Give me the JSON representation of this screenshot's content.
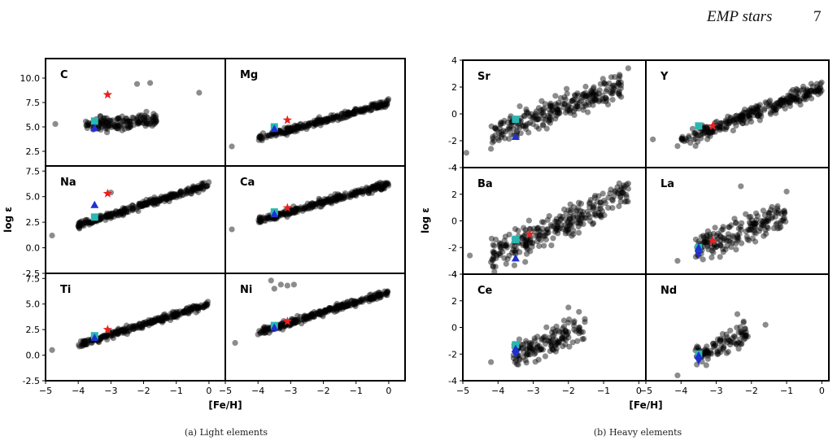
{
  "header": {
    "running_title": "EMP stars",
    "page_number": "7"
  },
  "captions": {
    "left": "(a)  Light elements",
    "right": "(b)  Heavy elements"
  },
  "colors": {
    "points": "#000000",
    "star": "#e8221f",
    "square": "#2ab7b2",
    "triangle": "#1f2fd1"
  },
  "chart_data": [
    {
      "type": "scatter",
      "figure": "left",
      "xlabel": "[Fe/H]",
      "ylabel": "log ε",
      "xlim": [
        -5,
        0.5
      ],
      "xticks": [
        -5,
        -4,
        -3,
        -2,
        -1,
        0
      ],
      "grid": false,
      "rows": [
        {
          "ylim": [
            1,
            12
          ],
          "yticks": [
            2.5,
            5.0,
            7.5,
            10.0
          ]
        },
        {
          "ylim": [
            -2.5,
            8
          ],
          "yticks": [
            -2.5,
            0.0,
            2.5,
            5.0,
            7.5
          ]
        },
        {
          "ylim": [
            -2.5,
            8
          ],
          "yticks": [
            -2.5,
            0.0,
            2.5,
            5.0,
            7.5
          ]
        }
      ],
      "panels": [
        {
          "label": "C",
          "row": 0,
          "col": 0,
          "trend": {
            "slope": 0.3,
            "intercept": 6.2,
            "spread": 0.6,
            "xmin": -3.8,
            "xmax": -1.6
          },
          "extra": [
            [
              -4.7,
              5.3
            ],
            [
              -0.3,
              8.5
            ],
            [
              -1.8,
              9.5
            ],
            [
              -2.2,
              9.4
            ]
          ],
          "markers": {
            "star": [
              -3.1,
              8.3
            ],
            "square": [
              -3.5,
              5.6
            ],
            "triangle": [
              -3.5,
              4.9
            ]
          }
        },
        {
          "label": "Mg",
          "row": 0,
          "col": 1,
          "trend": {
            "slope": 0.92,
            "intercept": 7.5,
            "spread": 0.25,
            "xmin": -4.0,
            "xmax": 0.0
          },
          "extra": [
            [
              -4.8,
              3.0
            ]
          ],
          "markers": {
            "star": [
              -3.1,
              5.7
            ],
            "square": [
              -3.5,
              5.0
            ],
            "triangle": [
              -3.5,
              4.8
            ]
          }
        },
        {
          "label": "Na",
          "row": 1,
          "col": 0,
          "trend": {
            "slope": 1.0,
            "intercept": 6.2,
            "spread": 0.25,
            "xmin": -4.0,
            "xmax": 0.0
          },
          "extra": [
            [
              -4.8,
              1.2
            ],
            [
              -3.0,
              5.4
            ]
          ],
          "markers": {
            "star": [
              -3.1,
              5.3
            ],
            "square": [
              -3.5,
              3.0
            ],
            "triangle": [
              -3.5,
              4.2
            ]
          }
        },
        {
          "label": "Ca",
          "row": 1,
          "col": 1,
          "trend": {
            "slope": 0.88,
            "intercept": 6.2,
            "spread": 0.25,
            "xmin": -4.0,
            "xmax": 0.0
          },
          "extra": [
            [
              -4.8,
              1.8
            ]
          ],
          "markers": {
            "star": [
              -3.1,
              3.9
            ],
            "square": [
              -3.5,
              3.5
            ],
            "triangle": [
              -3.5,
              3.3
            ]
          }
        },
        {
          "label": "Ti",
          "row": 2,
          "col": 0,
          "trend": {
            "slope": 1.0,
            "intercept": 5.0,
            "spread": 0.22,
            "xmin": -4.0,
            "xmax": 0.0
          },
          "extra": [
            [
              -4.8,
              0.5
            ]
          ],
          "markers": {
            "star": [
              -3.1,
              2.5
            ],
            "square": [
              -3.5,
              1.9
            ],
            "triangle": [
              -3.5,
              1.7
            ]
          }
        },
        {
          "label": "Ni",
          "row": 2,
          "col": 1,
          "trend": {
            "slope": 1.0,
            "intercept": 6.2,
            "spread": 0.22,
            "xmin": -4.0,
            "xmax": 0.0
          },
          "extra": [
            [
              -4.7,
              1.2
            ],
            [
              -3.6,
              7.3
            ],
            [
              -3.3,
              6.9
            ],
            [
              -3.1,
              6.8
            ],
            [
              -2.9,
              6.9
            ],
            [
              -3.5,
              6.5
            ]
          ],
          "markers": {
            "star": [
              -3.1,
              3.3
            ],
            "square": [
              -3.5,
              2.9
            ],
            "triangle": [
              -3.5,
              2.7
            ]
          }
        }
      ]
    },
    {
      "type": "scatter",
      "figure": "right",
      "xlabel": "[Fe/H]",
      "ylabel": "log ε",
      "xlim": [
        -5,
        0.2
      ],
      "xticks": [
        -5,
        -4,
        -3,
        -2,
        -1,
        0
      ],
      "grid": false,
      "rows": [
        {
          "ylim": [
            -4,
            4
          ],
          "yticks": [
            -4,
            -2,
            0,
            2,
            4
          ]
        },
        {
          "ylim": [
            -4,
            4
          ],
          "yticks": [
            -4,
            -2,
            0,
            2,
            4
          ]
        },
        {
          "ylim": [
            -4,
            4
          ],
          "yticks": [
            -4,
            -2,
            0,
            2,
            4
          ]
        }
      ],
      "panels": [
        {
          "label": "Sr",
          "row": 0,
          "col": 0,
          "trend": {
            "slope": 1.0,
            "intercept": 2.6,
            "spread": 0.7,
            "xmin": -4.2,
            "xmax": -0.5
          },
          "extra": [
            [
              -4.9,
              -2.9
            ],
            [
              -4.2,
              -2.6
            ],
            [
              -0.3,
              3.4
            ]
          ],
          "markers": {
            "star": null,
            "square": [
              -3.5,
              -0.4
            ],
            "triangle": [
              -3.5,
              -1.7
            ]
          }
        },
        {
          "label": "Y",
          "row": 0,
          "col": 1,
          "trend": {
            "slope": 1.0,
            "intercept": 2.0,
            "spread": 0.4,
            "xmin": -4.0,
            "xmax": 0.0
          },
          "extra": [
            [
              -4.8,
              -1.9
            ],
            [
              -4.1,
              -2.4
            ]
          ],
          "markers": {
            "star": [
              -3.1,
              -0.9
            ],
            "square": [
              -3.5,
              -0.9
            ],
            "triangle": null
          }
        },
        {
          "label": "Ba",
          "row": 1,
          "col": 0,
          "trend": {
            "slope": 1.2,
            "intercept": 2.4,
            "spread": 0.8,
            "xmin": -4.2,
            "xmax": -0.3
          },
          "extra": [
            [
              -4.8,
              -2.6
            ],
            [
              -4.2,
              -3.1
            ],
            [
              -0.3,
              2.8
            ]
          ],
          "markers": {
            "star": [
              -3.1,
              -1.0
            ],
            "square": [
              -3.5,
              -1.4
            ],
            "triangle": [
              -3.5,
              -2.8
            ]
          }
        },
        {
          "label": "La",
          "row": 1,
          "col": 1,
          "trend": {
            "slope": 1.0,
            "intercept": 1.5,
            "spread": 0.7,
            "xmin": -3.6,
            "xmax": -1.0
          },
          "extra": [
            [
              -4.1,
              -3.0
            ],
            [
              -2.3,
              2.6
            ],
            [
              -1.0,
              2.2
            ]
          ],
          "markers": {
            "star": [
              -3.1,
              -1.5
            ],
            "square": [
              -3.5,
              -2.0
            ],
            "triangle": [
              -3.5,
              -2.0
            ],
            "down_triangle": [
              -3.5,
              -2.5
            ]
          }
        },
        {
          "label": "Ce",
          "row": 2,
          "col": 0,
          "trend": {
            "slope": 1.1,
            "intercept": 1.8,
            "spread": 0.7,
            "xmin": -3.6,
            "xmax": -1.5
          },
          "extra": [
            [
              -4.2,
              -2.6
            ],
            [
              -2.0,
              1.5
            ]
          ],
          "markers": {
            "star": null,
            "square": [
              -3.5,
              -1.3
            ],
            "triangle": [
              -3.5,
              -1.6
            ],
            "down_triangle": [
              -3.5,
              -2.0
            ]
          }
        },
        {
          "label": "Nd",
          "row": 2,
          "col": 1,
          "trend": {
            "slope": 1.2,
            "intercept": 2.0,
            "spread": 0.6,
            "xmin": -3.6,
            "xmax": -2.1
          },
          "extra": [
            [
              -4.1,
              -3.6
            ],
            [
              -1.6,
              0.2
            ],
            [
              -2.4,
              1.0
            ]
          ],
          "markers": {
            "star": null,
            "square": [
              -3.5,
              -2.0
            ],
            "triangle": [
              -3.5,
              -2.1
            ],
            "down_triangle": [
              -3.5,
              -2.5
            ]
          }
        }
      ]
    }
  ]
}
